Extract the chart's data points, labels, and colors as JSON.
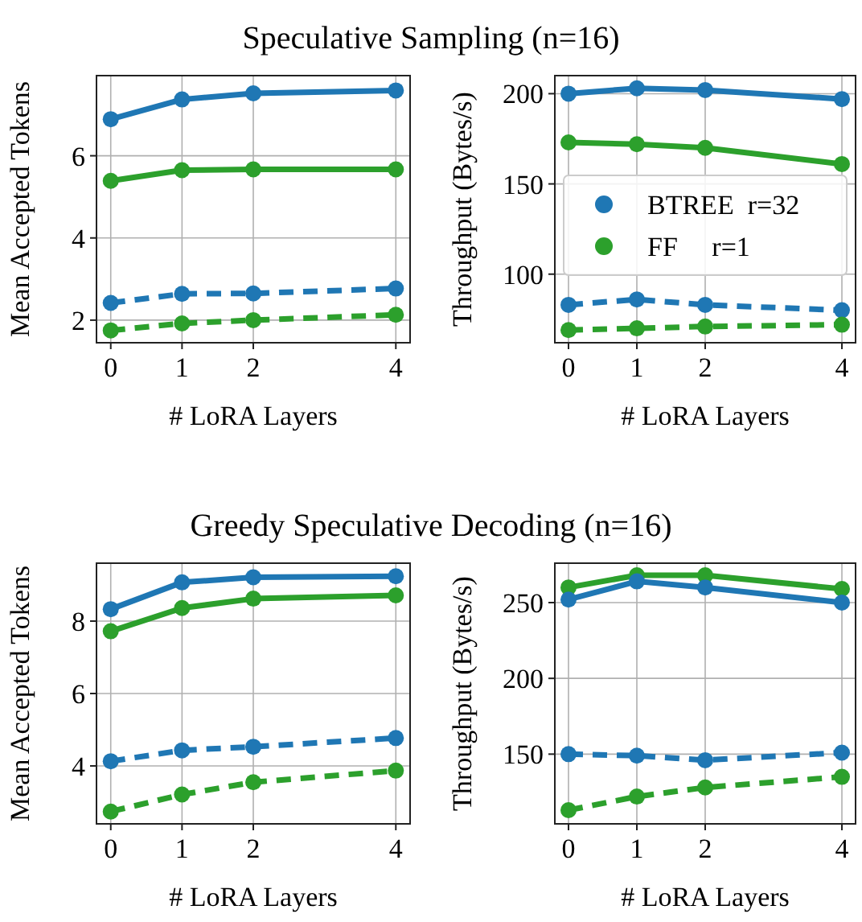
{
  "chart_data": [
    {
      "type": "line",
      "title": "Speculative Sampling (n=16)",
      "xlabel": "# LoRA Layers",
      "ylabel": "Mean Accepted Tokens",
      "x": [
        0,
        1,
        2,
        4
      ],
      "xlim": [
        -0.2,
        4.2
      ],
      "xticks": [
        0,
        1,
        2,
        4
      ],
      "ylim": [
        1.45,
        7.95
      ],
      "yticks": [
        2,
        4,
        6
      ],
      "grid": true,
      "marker": "circle",
      "legend": false,
      "series": [
        {
          "color": "#1f77b4",
          "line_style": "solid",
          "values": [
            6.89,
            7.37,
            7.52,
            7.59
          ]
        },
        {
          "color": "#2ca02c",
          "line_style": "solid",
          "values": [
            5.39,
            5.65,
            5.67,
            5.67
          ]
        },
        {
          "color": "#1f77b4",
          "line_style": "dashed",
          "values": [
            2.42,
            2.64,
            2.65,
            2.77
          ]
        },
        {
          "color": "#2ca02c",
          "line_style": "dashed",
          "values": [
            1.75,
            1.92,
            2.0,
            2.13
          ]
        }
      ]
    },
    {
      "type": "line",
      "xlabel": "# LoRA Layers",
      "ylabel": "Throughput (Bytes/s)",
      "x": [
        0,
        1,
        2,
        4
      ],
      "xlim": [
        -0.2,
        4.2
      ],
      "xticks": [
        0,
        1,
        2,
        4
      ],
      "ylim": [
        62,
        210
      ],
      "yticks": [
        100,
        150,
        200
      ],
      "grid": true,
      "marker": "circle",
      "legend": "center",
      "series": [
        {
          "name": "BTREE  r=32",
          "color": "#1f77b4",
          "line_style": "solid",
          "values": [
            200,
            203,
            202,
            197
          ]
        },
        {
          "name": "FF     r=1",
          "color": "#2ca02c",
          "line_style": "solid",
          "values": [
            173,
            172,
            170,
            161
          ]
        },
        {
          "color": "#1f77b4",
          "line_style": "dashed",
          "values": [
            83,
            86,
            83,
            80
          ]
        },
        {
          "color": "#2ca02c",
          "line_style": "dashed",
          "values": [
            69,
            70,
            71,
            72
          ]
        }
      ]
    },
    {
      "type": "line",
      "title": "Greedy Speculative Decoding (n=16)",
      "xlabel": "# LoRA Layers",
      "ylabel": "Mean Accepted Tokens",
      "x": [
        0,
        1,
        2,
        4
      ],
      "xlim": [
        -0.2,
        4.2
      ],
      "xticks": [
        0,
        1,
        2,
        4
      ],
      "ylim": [
        2.4,
        9.6
      ],
      "yticks": [
        4,
        6,
        8
      ],
      "grid": true,
      "marker": "circle",
      "legend": false,
      "series": [
        {
          "color": "#1f77b4",
          "line_style": "solid",
          "values": [
            8.33,
            9.07,
            9.21,
            9.24
          ]
        },
        {
          "color": "#2ca02c",
          "line_style": "solid",
          "values": [
            7.72,
            8.36,
            8.62,
            8.71
          ]
        },
        {
          "color": "#1f77b4",
          "line_style": "dashed",
          "values": [
            4.13,
            4.43,
            4.53,
            4.77
          ]
        },
        {
          "color": "#2ca02c",
          "line_style": "dashed",
          "values": [
            2.74,
            3.21,
            3.55,
            3.87
          ]
        }
      ]
    },
    {
      "type": "line",
      "xlabel": "# LoRA Layers",
      "ylabel": "Throughput (Bytes/s)",
      "x": [
        0,
        1,
        2,
        4
      ],
      "xlim": [
        -0.2,
        4.2
      ],
      "xticks": [
        0,
        1,
        2,
        4
      ],
      "ylim": [
        104,
        276
      ],
      "yticks": [
        150,
        200,
        250
      ],
      "grid": true,
      "marker": "circle",
      "legend": false,
      "series": [
        {
          "color": "#2ca02c",
          "line_style": "solid",
          "values": [
            260,
            268,
            268,
            259
          ]
        },
        {
          "color": "#1f77b4",
          "line_style": "solid",
          "values": [
            252,
            264,
            260,
            250
          ]
        },
        {
          "color": "#1f77b4",
          "line_style": "dashed",
          "values": [
            150,
            149,
            146,
            151
          ]
        },
        {
          "color": "#2ca02c",
          "line_style": "dashed",
          "values": [
            113,
            122,
            128,
            135
          ]
        }
      ]
    }
  ]
}
